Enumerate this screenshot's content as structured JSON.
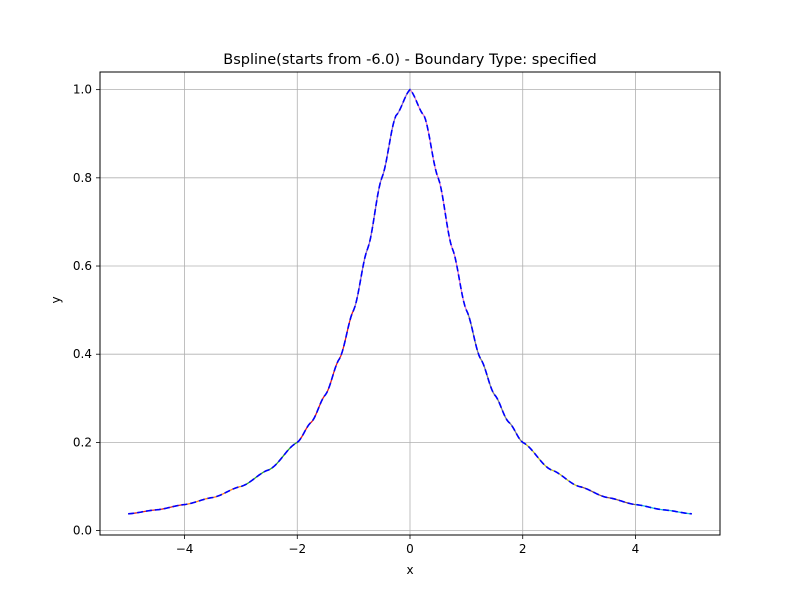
{
  "chart_data": {
    "type": "line",
    "title": "Bspline(starts from -6.0) - Boundary Type: specified",
    "xlabel": "x",
    "ylabel": "y",
    "xlim": [
      -5.5,
      5.5
    ],
    "ylim": [
      -0.01,
      1.04
    ],
    "xticks": [
      -4,
      -2,
      0,
      2,
      4
    ],
    "xtick_labels": [
      "−4",
      "−2",
      "0",
      "2",
      "4"
    ],
    "yticks": [
      0.0,
      0.2,
      0.4,
      0.6,
      0.8,
      1.0
    ],
    "ytick_labels": [
      "0.0",
      "0.2",
      "0.4",
      "0.6",
      "0.8",
      "1.0"
    ],
    "grid": true,
    "function_samples": {
      "x": [
        -5,
        -4.5,
        -4,
        -3.5,
        -3,
        -2.5,
        -2,
        -1.75,
        -1.5,
        -1.25,
        -1,
        -0.75,
        -0.5,
        -0.25,
        0,
        0.25,
        0.5,
        0.75,
        1,
        1.25,
        1.5,
        1.75,
        2,
        2.5,
        3,
        3.5,
        4,
        4.5,
        5
      ],
      "y": [
        0.038,
        0.047,
        0.059,
        0.075,
        0.1,
        0.138,
        0.2,
        0.246,
        0.308,
        0.39,
        0.5,
        0.64,
        0.8,
        0.941,
        1.0,
        0.941,
        0.8,
        0.64,
        0.5,
        0.39,
        0.308,
        0.246,
        0.2,
        0.138,
        0.1,
        0.075,
        0.059,
        0.047,
        0.038
      ]
    },
    "series": [
      {
        "segment": [
          -5,
          -4
        ],
        "color": "#d62728",
        "style": "solid"
      },
      {
        "segment": [
          -4,
          -3
        ],
        "color": "#ff7f0e",
        "style": "solid"
      },
      {
        "segment": [
          -3,
          -2
        ],
        "color": "#2ca02c",
        "style": "solid"
      },
      {
        "segment": [
          -2,
          -1
        ],
        "color": "#e31a1c",
        "style": "solid"
      },
      {
        "segment": [
          -1,
          0
        ],
        "color": "#9467bd",
        "style": "solid"
      },
      {
        "segment": [
          0,
          1
        ],
        "color": "#e377c2",
        "style": "solid"
      },
      {
        "segment": [
          1,
          2
        ],
        "color": "#7f7f7f",
        "style": "solid"
      },
      {
        "segment": [
          2,
          3
        ],
        "color": "#bcbd22",
        "style": "solid"
      },
      {
        "segment": [
          3,
          4
        ],
        "color": "#8c564b",
        "style": "solid"
      },
      {
        "segment": [
          4,
          5
        ],
        "color": "#17becf",
        "style": "solid"
      },
      {
        "segment": [
          -5,
          5
        ],
        "color": "#0000ff",
        "style": "dashed"
      }
    ]
  }
}
